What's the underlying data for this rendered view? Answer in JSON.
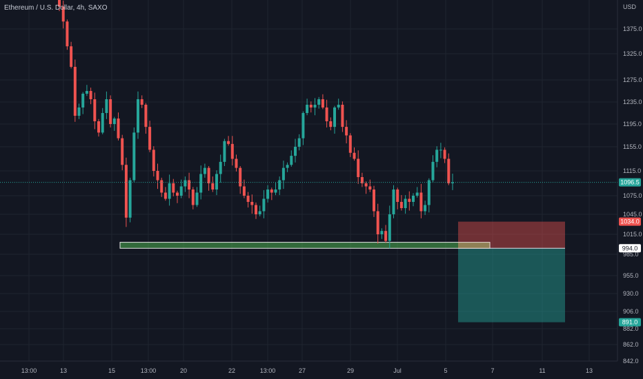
{
  "chart_data": {
    "type": "candlestick",
    "title": "Ethereum / U.S. Dollar, 4h, SAXO",
    "currency": "USD",
    "grid": true,
    "colors": {
      "up": "#26a69a",
      "down": "#ef5350",
      "background": "#131722",
      "grid": "#1f2430"
    },
    "y_ticks": [
      "1375.0",
      "1325.0",
      "1275.0",
      "1235.0",
      "1195.0",
      "1155.0",
      "1115.0",
      "1075.0",
      "1045.0",
      "1015.0",
      "985.0",
      "955.0",
      "930.0",
      "906.0",
      "882.0",
      "862.0",
      "842.0"
    ],
    "y_tick_values": [
      1375,
      1325,
      1275,
      1235,
      1195,
      1155,
      1115,
      1075,
      1045,
      1015,
      985,
      955,
      930,
      906,
      882,
      862,
      842
    ],
    "x_ticks": [
      "13:00",
      "13",
      "15",
      "13:00",
      "20",
      "22",
      "13:00",
      "27",
      "29",
      "Jul",
      "5",
      "7",
      "11",
      "13"
    ],
    "price_labels": [
      {
        "text": "1096.5",
        "value": 1096.5,
        "color": "#26a69a"
      },
      {
        "text": "1034.0",
        "value": 1034.0,
        "color": "#ef5350"
      },
      {
        "text": "994.0",
        "value": 994.0,
        "color": "#ffffff"
      },
      {
        "text": "891.0",
        "value": 891.0,
        "color": "#26a69a"
      }
    ],
    "current_price": 1096.5,
    "position": {
      "type": "short",
      "entry": 994.0,
      "stop": 1034.0,
      "target": 891.0
    },
    "support_zone": {
      "top": 1003,
      "bottom": 994
    },
    "closes": [
      1420,
      1390,
      1340,
      1300,
      1210,
      1225,
      1250,
      1255,
      1240,
      1200,
      1180,
      1215,
      1240,
      1195,
      1205,
      1170,
      1125,
      1040,
      1100,
      1180,
      1240,
      1230,
      1190,
      1150,
      1115,
      1100,
      1080,
      1070,
      1095,
      1080,
      1075,
      1090,
      1100,
      1085,
      1060,
      1080,
      1110,
      1120,
      1095,
      1085,
      1110,
      1130,
      1165,
      1160,
      1135,
      1120,
      1090,
      1075,
      1065,
      1060,
      1045,
      1050,
      1070,
      1085,
      1080,
      1085,
      1100,
      1120,
      1125,
      1140,
      1155,
      1170,
      1215,
      1230,
      1225,
      1230,
      1240,
      1225,
      1200,
      1190,
      1225,
      1230,
      1190,
      1175,
      1145,
      1135,
      1105,
      1095,
      1090,
      1085,
      1050,
      1015,
      1020,
      1005,
      1045,
      1085,
      1065,
      1055,
      1070,
      1065,
      1075,
      1080,
      1050,
      1060,
      1100,
      1130,
      1150,
      1150,
      1135,
      1095,
      1096.5
    ]
  }
}
